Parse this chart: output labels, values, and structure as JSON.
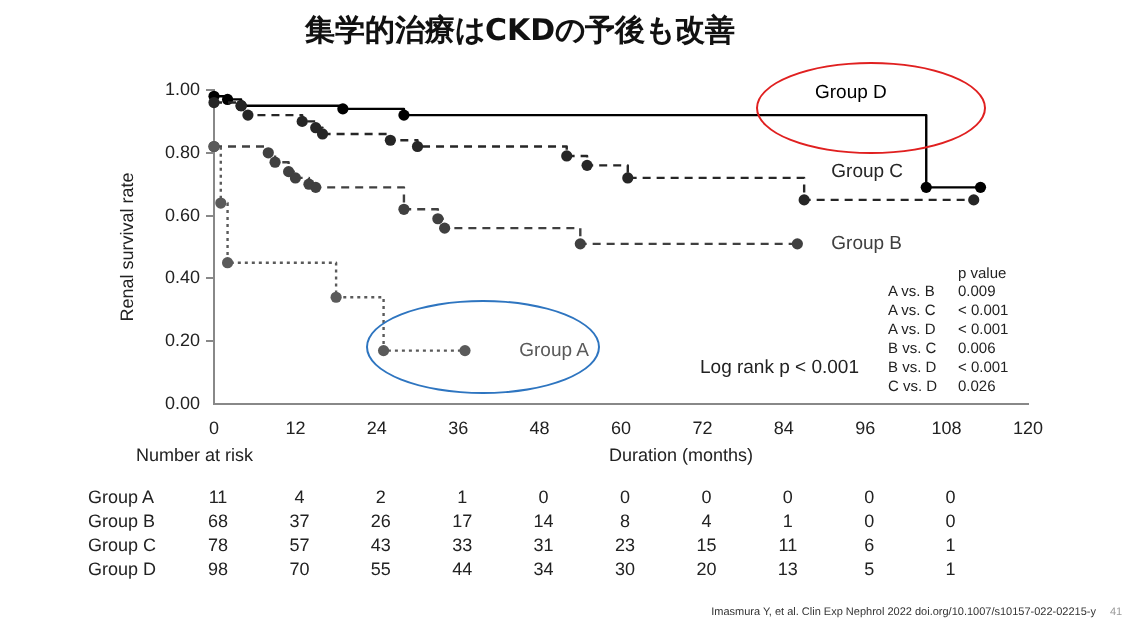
{
  "chart_data": {
    "type": "step",
    "title": "集学的治療はCKDの予後も改善",
    "xlabel": "Duration (months)",
    "ylabel": "Renal survival rate",
    "series": [
      {
        "name": "Group A",
        "color": "#5a5a5a",
        "line_style": "dotted",
        "x": [
          0,
          1,
          2,
          18,
          25,
          37
        ],
        "values": [
          0.82,
          0.64,
          0.45,
          0.34,
          0.17,
          0.17
        ]
      },
      {
        "name": "Group B",
        "color": "#404040",
        "line_style": "dashed",
        "x": [
          0,
          8,
          9,
          11,
          12,
          14,
          15,
          28,
          33,
          34,
          54,
          86
        ],
        "values": [
          0.82,
          0.8,
          0.77,
          0.74,
          0.72,
          0.7,
          0.69,
          0.62,
          0.59,
          0.56,
          0.51,
          0.51
        ]
      },
      {
        "name": "Group C",
        "color": "#262626",
        "line_style": "dashed",
        "x": [
          0,
          4,
          5,
          13,
          15,
          16,
          26,
          30,
          52,
          55,
          61,
          87,
          112
        ],
        "values": [
          0.96,
          0.95,
          0.92,
          0.9,
          0.88,
          0.86,
          0.84,
          0.82,
          0.79,
          0.76,
          0.72,
          0.65,
          0.65
        ]
      },
      {
        "name": "Group D",
        "color": "#000000",
        "line_style": "solid",
        "x": [
          0,
          2,
          4,
          19,
          28,
          105,
          113
        ],
        "values": [
          0.98,
          0.97,
          0.95,
          0.94,
          0.92,
          0.69,
          0.69
        ]
      }
    ],
    "xlim": [
      0,
      120
    ],
    "xticks": [
      0,
      12,
      24,
      36,
      48,
      60,
      72,
      84,
      96,
      108,
      120
    ],
    "ylim": [
      0,
      1
    ],
    "yticks": [
      {
        "value": 0,
        "label": "0.00"
      },
      {
        "value": 0.2,
        "label": "0.20"
      },
      {
        "value": 0.4,
        "label": "0.40"
      },
      {
        "value": 0.6,
        "label": "0.60"
      },
      {
        "value": 0.8,
        "label": "0.80"
      },
      {
        "value": 1,
        "label": "1.00"
      }
    ],
    "grid": false,
    "legend": false,
    "marker": "circle",
    "annotations": [
      "Log rank p < 0.001",
      "p value",
      "A vs. B 0.009",
      "A vs. C < 0.001",
      "A vs. D < 0.001",
      "B vs. C 0.006",
      "B vs. D < 0.001",
      "C vs. D 0.026",
      "Number at risk",
      "Group A 11 4 2 1 0 0 0 0 0 0",
      "Group B 68 37 26 17 14 8 4 1 0 0",
      "Group C 78 57 43 33 31 23 15 11 6 1",
      "Group D 98 70 55 44 34 30 20 13 5 1",
      "Imasmura Y, et al. Clin Exp Nephrol 2022 doi.org/10.1007/s10157-022-02215-y",
      "41"
    ]
  }
}
